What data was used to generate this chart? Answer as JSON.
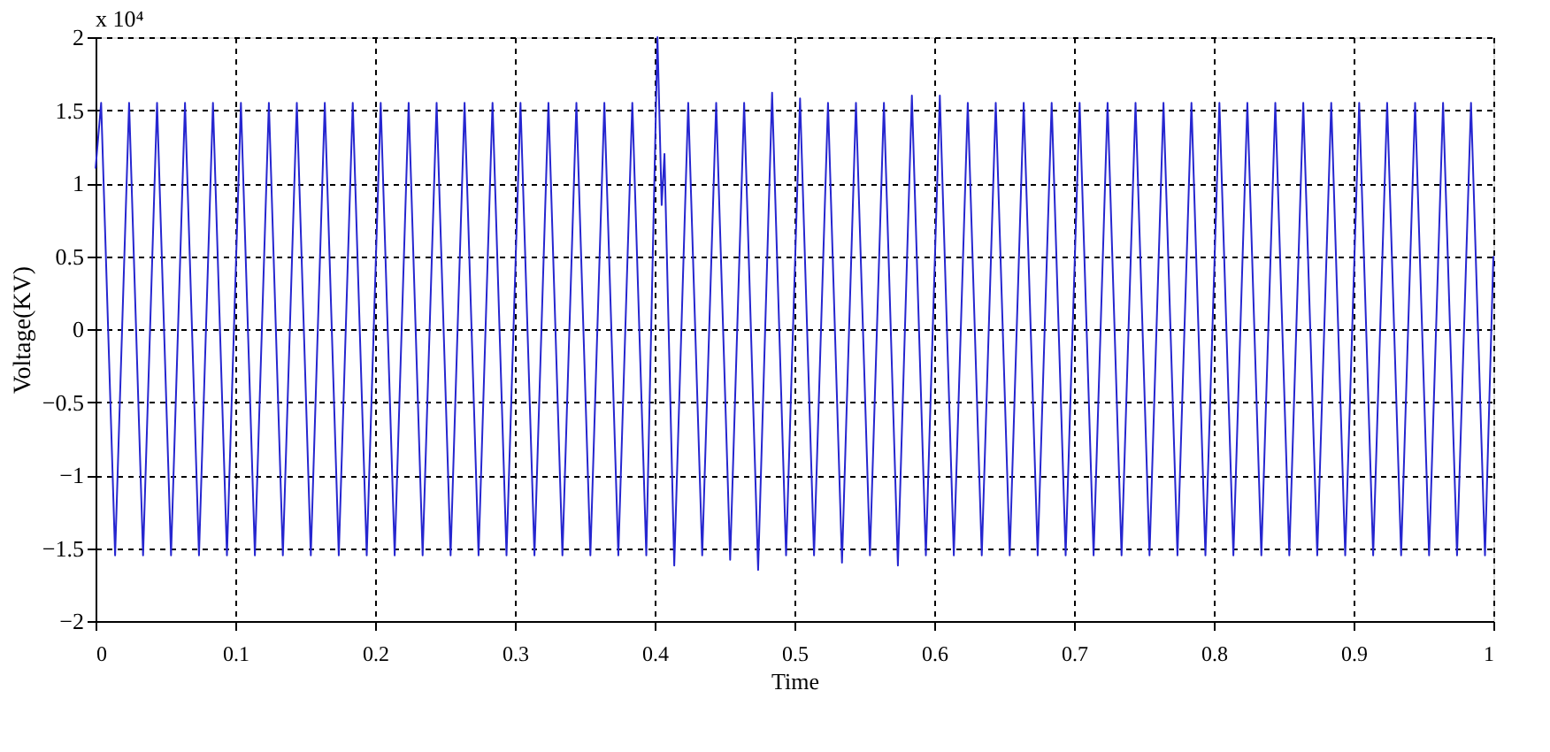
{
  "chart_data": {
    "type": "line",
    "xlabel": "Time",
    "ylabel": "Voltage(KV)",
    "annotations": [
      "x 10⁴"
    ],
    "xlim": [
      0,
      1
    ],
    "xticks": [
      0,
      0.1,
      0.2,
      0.3,
      0.4,
      0.5,
      0.6,
      0.7,
      0.8,
      0.9,
      1
    ],
    "ylim": [
      -2,
      2
    ],
    "yticks": [
      -2,
      -1.5,
      -1,
      -0.5,
      0,
      0.5,
      1,
      1.5,
      2
    ],
    "grid": true,
    "marker": "none",
    "line_style": "solid",
    "series": [
      {
        "color": "#2626d0",
        "x": [
          0,
          0.004,
          0.014,
          0.024,
          0.034,
          0.044,
          0.054,
          0.064,
          0.074,
          0.084,
          0.094,
          0.104,
          0.114,
          0.124,
          0.134,
          0.144,
          0.154,
          0.164,
          0.174,
          0.184,
          0.194,
          0.204,
          0.214,
          0.224,
          0.234,
          0.244,
          0.254,
          0.264,
          0.274,
          0.284,
          0.294,
          0.304,
          0.314,
          0.324,
          0.334,
          0.344,
          0.354,
          0.364,
          0.374,
          0.384,
          0.394,
          0.402,
          0.405,
          0.407,
          0.414,
          0.424,
          0.434,
          0.444,
          0.454,
          0.464,
          0.474,
          0.484,
          0.494,
          0.504,
          0.514,
          0.524,
          0.534,
          0.544,
          0.554,
          0.564,
          0.574,
          0.584,
          0.594,
          0.604,
          0.614,
          0.624,
          0.634,
          0.644,
          0.654,
          0.664,
          0.674,
          0.684,
          0.694,
          0.704,
          0.714,
          0.724,
          0.734,
          0.744,
          0.754,
          0.764,
          0.774,
          0.784,
          0.794,
          0.804,
          0.814,
          0.824,
          0.834,
          0.844,
          0.854,
          0.864,
          0.874,
          0.884,
          0.894,
          0.904,
          0.914,
          0.924,
          0.934,
          0.944,
          0.954,
          0.964,
          0.974,
          0.984,
          0.994,
          1
        ],
        "values": [
          1.1,
          1.55,
          -1.55,
          1.55,
          -1.55,
          1.55,
          -1.55,
          1.55,
          -1.55,
          1.55,
          -1.55,
          1.55,
          -1.55,
          1.55,
          -1.55,
          1.55,
          -1.55,
          1.55,
          -1.55,
          1.55,
          -1.55,
          1.55,
          -1.55,
          1.55,
          -1.55,
          1.55,
          -1.55,
          1.55,
          -1.55,
          1.55,
          -1.55,
          1.55,
          -1.55,
          1.55,
          -1.55,
          1.55,
          -1.55,
          1.55,
          -1.55,
          1.55,
          -1.55,
          2.0,
          0.85,
          1.2,
          -1.62,
          1.55,
          -1.55,
          1.55,
          -1.58,
          1.55,
          -1.65,
          1.62,
          -1.55,
          1.58,
          -1.55,
          1.55,
          -1.6,
          1.55,
          -1.55,
          1.55,
          -1.62,
          1.6,
          -1.55,
          1.6,
          -1.55,
          1.55,
          -1.55,
          1.55,
          -1.55,
          1.55,
          -1.55,
          1.55,
          -1.55,
          1.55,
          -1.55,
          1.55,
          -1.55,
          1.55,
          -1.55,
          1.55,
          -1.55,
          1.55,
          -1.55,
          1.55,
          -1.55,
          1.55,
          -1.55,
          1.55,
          -1.55,
          1.55,
          -1.55,
          1.55,
          -1.55,
          1.55,
          -1.55,
          1.55,
          -1.55,
          1.55,
          -1.55,
          1.55,
          -1.55,
          1.55,
          -1.55,
          0.5
        ]
      }
    ]
  }
}
